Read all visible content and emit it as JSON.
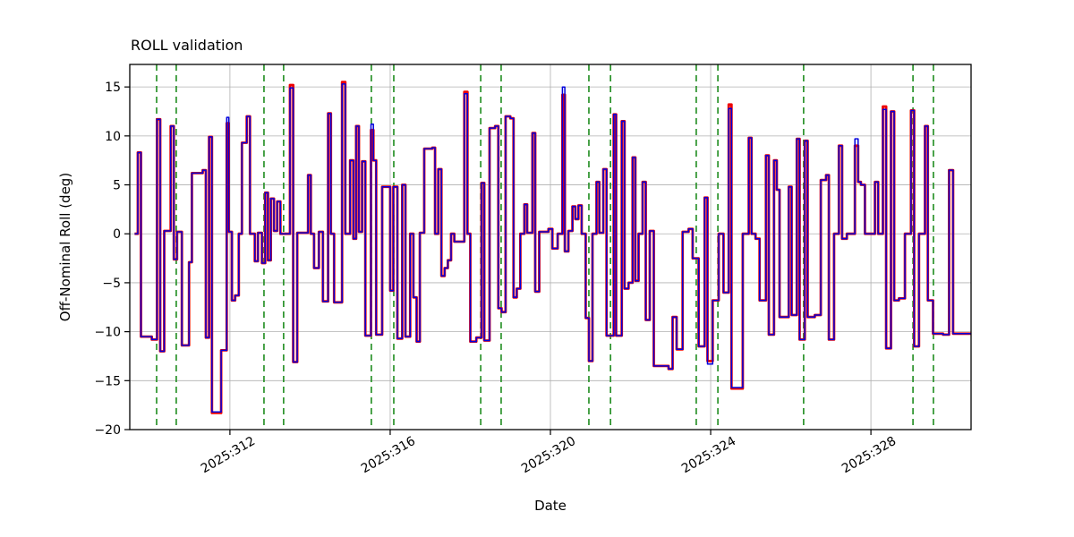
{
  "page": {
    "background": "#ffffff"
  },
  "chart_data": {
    "type": "line",
    "title": "ROLL validation",
    "xlabel": "Date",
    "ylabel": "Off-Nominal Roll (deg)",
    "x_unit": "year:day-of-year",
    "xlim": [
      309.5,
      330.5
    ],
    "ylim": [
      -20,
      17.3
    ],
    "grid": true,
    "step": "post",
    "x_ticks": [
      {
        "v": 312,
        "label": "2025:312"
      },
      {
        "v": 316,
        "label": "2025:316"
      },
      {
        "v": 320,
        "label": "2025:320"
      },
      {
        "v": 324,
        "label": "2025:324"
      },
      {
        "v": 328,
        "label": "2025:328"
      }
    ],
    "y_ticks": [
      {
        "v": -20,
        "label": "−20"
      },
      {
        "v": -15,
        "label": "−15"
      },
      {
        "v": -10,
        "label": "−10"
      },
      {
        "v": -5,
        "label": "−5"
      },
      {
        "v": 0,
        "label": "0"
      },
      {
        "v": 5,
        "label": "5"
      },
      {
        "v": 10,
        "label": "10"
      },
      {
        "v": 15,
        "label": "15"
      }
    ],
    "series": [
      {
        "name": "red",
        "color": "#ee0000",
        "width": 2.8
      },
      {
        "name": "blue",
        "color": "#0000dd",
        "width": 1.5
      }
    ],
    "points": [
      [
        309.62,
        0
      ],
      [
        309.7,
        8.3
      ],
      [
        309.78,
        -10.5
      ],
      [
        310.05,
        -10.8
      ],
      [
        310.18,
        11.7
      ],
      [
        310.26,
        -12
      ],
      [
        310.36,
        0.3
      ],
      [
        310.52,
        11
      ],
      [
        310.6,
        -2.6
      ],
      [
        310.68,
        0.2
      ],
      [
        310.8,
        -11.4
      ],
      [
        310.98,
        -2.9
      ],
      [
        311.05,
        6.2
      ],
      [
        311.32,
        6.5
      ],
      [
        311.4,
        -10.6
      ],
      [
        311.48,
        9.9
      ],
      [
        311.55,
        -18.3,
        -18.2
      ],
      [
        311.78,
        -11.9
      ],
      [
        311.92,
        11.3,
        11.9
      ],
      [
        311.97,
        0.2
      ],
      [
        312.05,
        -6.8
      ],
      [
        312.13,
        -6.3
      ],
      [
        312.22,
        0
      ],
      [
        312.3,
        9.3
      ],
      [
        312.42,
        12
      ],
      [
        312.5,
        0
      ],
      [
        312.62,
        -2.8
      ],
      [
        312.7,
        0.1
      ],
      [
        312.8,
        -3
      ],
      [
        312.88,
        4.2
      ],
      [
        312.95,
        -2.7
      ],
      [
        313.02,
        3.6
      ],
      [
        313.1,
        0.3
      ],
      [
        313.18,
        3.3
      ],
      [
        313.26,
        0
      ],
      [
        313.5,
        15.2,
        14.9
      ],
      [
        313.58,
        -13.1
      ],
      [
        313.68,
        0.1
      ],
      [
        313.95,
        6
      ],
      [
        314.02,
        0
      ],
      [
        314.1,
        -3.5
      ],
      [
        314.22,
        0.2
      ],
      [
        314.32,
        -6.9
      ],
      [
        314.45,
        12.3
      ],
      [
        314.52,
        0
      ],
      [
        314.6,
        -7
      ],
      [
        314.8,
        15.5,
        15.3
      ],
      [
        314.88,
        0
      ],
      [
        315.0,
        7.5
      ],
      [
        315.08,
        -0.5
      ],
      [
        315.15,
        11
      ],
      [
        315.22,
        0.2
      ],
      [
        315.3,
        7.4
      ],
      [
        315.38,
        -10.4
      ],
      [
        315.52,
        10.6,
        11.2
      ],
      [
        315.58,
        7.5
      ],
      [
        315.65,
        -10.3
      ],
      [
        315.8,
        4.8
      ],
      [
        316.0,
        -5.8
      ],
      [
        316.08,
        4.8
      ],
      [
        316.18,
        -10.7
      ],
      [
        316.3,
        5
      ],
      [
        316.38,
        -10.5
      ],
      [
        316.5,
        0
      ],
      [
        316.58,
        -6.5
      ],
      [
        316.66,
        -11
      ],
      [
        316.74,
        0.1
      ],
      [
        316.85,
        8.7
      ],
      [
        317.05,
        8.8
      ],
      [
        317.12,
        0
      ],
      [
        317.2,
        6.6
      ],
      [
        317.28,
        -4.3
      ],
      [
        317.36,
        -3.5
      ],
      [
        317.44,
        -2.7
      ],
      [
        317.52,
        0
      ],
      [
        317.6,
        -0.8
      ],
      [
        317.85,
        14.5,
        14.3
      ],
      [
        317.93,
        0
      ],
      [
        318.0,
        -11
      ],
      [
        318.15,
        -10.6
      ],
      [
        318.28,
        5.2
      ],
      [
        318.35,
        -10.9
      ],
      [
        318.48,
        10.8
      ],
      [
        318.62,
        11
      ],
      [
        318.7,
        -7.6
      ],
      [
        318.78,
        -8
      ],
      [
        318.88,
        12
      ],
      [
        319.0,
        11.8
      ],
      [
        319.08,
        -6.5
      ],
      [
        319.16,
        -5.6
      ],
      [
        319.25,
        0
      ],
      [
        319.35,
        3
      ],
      [
        319.42,
        0.1
      ],
      [
        319.55,
        10.3
      ],
      [
        319.62,
        -5.9
      ],
      [
        319.72,
        0.2
      ],
      [
        319.95,
        0.5
      ],
      [
        320.05,
        -1.5
      ],
      [
        320.18,
        0
      ],
      [
        320.3,
        14.2,
        15.0
      ],
      [
        320.36,
        -1.8
      ],
      [
        320.45,
        0.3
      ],
      [
        320.55,
        2.8
      ],
      [
        320.62,
        1.5
      ],
      [
        320.7,
        2.9
      ],
      [
        320.78,
        0
      ],
      [
        320.88,
        -8.6
      ],
      [
        320.96,
        -13
      ],
      [
        321.05,
        0
      ],
      [
        321.15,
        5.3
      ],
      [
        321.22,
        0.1
      ],
      [
        321.32,
        6.6
      ],
      [
        321.4,
        -10.4
      ],
      [
        321.58,
        12.2
      ],
      [
        321.64,
        -10.4
      ],
      [
        321.78,
        11.5
      ],
      [
        321.85,
        -5.6
      ],
      [
        321.95,
        -5
      ],
      [
        322.05,
        7.8
      ],
      [
        322.12,
        -4.8
      ],
      [
        322.2,
        0
      ],
      [
        322.3,
        5.3
      ],
      [
        322.38,
        -8.8
      ],
      [
        322.48,
        0.3
      ],
      [
        322.58,
        -13.5
      ],
      [
        322.95,
        -13.8
      ],
      [
        323.05,
        -8.5
      ],
      [
        323.15,
        -11.8
      ],
      [
        323.3,
        0.2
      ],
      [
        323.45,
        0.5
      ],
      [
        323.55,
        -2.5
      ],
      [
        323.7,
        -11.5
      ],
      [
        323.85,
        3.7
      ],
      [
        323.92,
        -13,
        -13.3
      ],
      [
        324.05,
        -6.8
      ],
      [
        324.2,
        0
      ],
      [
        324.32,
        -6
      ],
      [
        324.45,
        13.2,
        12.8
      ],
      [
        324.52,
        -15.8,
        -15.7
      ],
      [
        324.8,
        0
      ],
      [
        324.95,
        9.8
      ],
      [
        325.02,
        0
      ],
      [
        325.12,
        -0.5
      ],
      [
        325.22,
        -6.8
      ],
      [
        325.38,
        8
      ],
      [
        325.45,
        -10.3
      ],
      [
        325.58,
        7.5
      ],
      [
        325.65,
        4.5
      ],
      [
        325.72,
        -8.5
      ],
      [
        325.95,
        4.8
      ],
      [
        326.02,
        -8.3
      ],
      [
        326.15,
        9.7
      ],
      [
        326.22,
        -10.8
      ],
      [
        326.35,
        9.5
      ],
      [
        326.42,
        -8.5
      ],
      [
        326.6,
        -8.3
      ],
      [
        326.75,
        5.5
      ],
      [
        326.88,
        6
      ],
      [
        326.95,
        -10.8
      ],
      [
        327.08,
        0
      ],
      [
        327.2,
        9
      ],
      [
        327.28,
        -0.5
      ],
      [
        327.4,
        0
      ],
      [
        327.6,
        9.0,
        9.7
      ],
      [
        327.68,
        5.3
      ],
      [
        327.75,
        5
      ],
      [
        327.85,
        0
      ],
      [
        328.1,
        5.3
      ],
      [
        328.18,
        0
      ],
      [
        328.3,
        13,
        12.7
      ],
      [
        328.38,
        -11.7
      ],
      [
        328.5,
        12.5
      ],
      [
        328.58,
        -6.8
      ],
      [
        328.7,
        -6.6
      ],
      [
        328.85,
        0
      ],
      [
        329.0,
        12.6
      ],
      [
        329.08,
        -11.5
      ],
      [
        329.2,
        0
      ],
      [
        329.35,
        11
      ],
      [
        329.42,
        -6.8
      ],
      [
        329.55,
        -10.2
      ],
      [
        329.8,
        -10.3
      ],
      [
        329.95,
        6.5
      ],
      [
        330.05,
        -10.2
      ],
      [
        330.2,
        -10.2
      ]
    ],
    "event_lines": {
      "color": "#1e8c1e",
      "dash": [
        7,
        5
      ],
      "x": [
        310.17,
        310.66,
        312.85,
        313.34,
        315.53,
        316.09,
        318.26,
        318.77,
        320.96,
        321.5,
        323.64,
        324.18,
        326.32,
        329.05,
        329.56
      ]
    }
  }
}
